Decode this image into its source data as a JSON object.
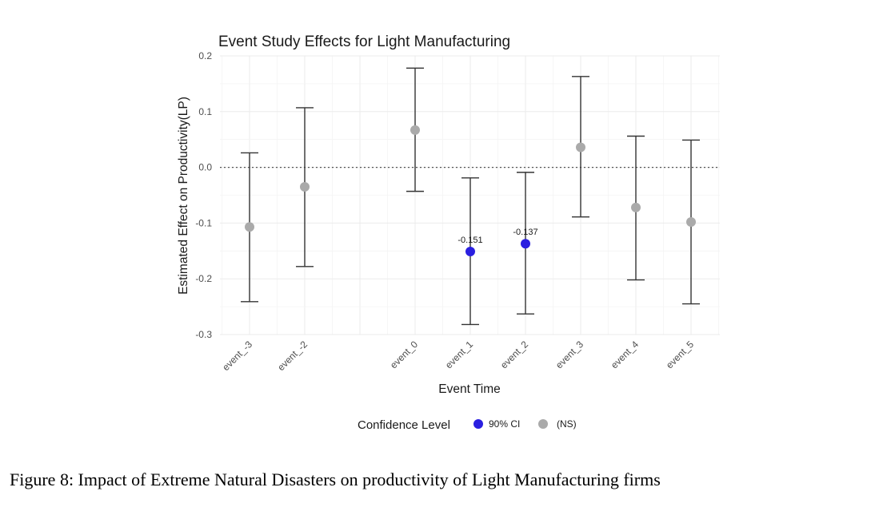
{
  "chart_data": {
    "type": "scatter",
    "title": "Event Study Effects for Light Manufacturing",
    "xlabel": "Event Time",
    "ylabel": "Estimated Effect on Productivity(LP)",
    "categories": [
      "event_-3",
      "event_-2",
      "event_0",
      "event_1",
      "event_2",
      "event_3",
      "event_4",
      "event_5"
    ],
    "ylim": [
      -0.3,
      0.2
    ],
    "yticks": [
      "-0.3",
      "-0.2",
      "-0.1",
      "0.0",
      "0.1",
      "0.2"
    ],
    "points": [
      {
        "category": "event_-3",
        "estimate": -0.107,
        "ci_low": -0.241,
        "ci_high": 0.026,
        "group": "(NS)",
        "label": ""
      },
      {
        "category": "event_-2",
        "estimate": -0.035,
        "ci_low": -0.178,
        "ci_high": 0.107,
        "group": "(NS)",
        "label": ""
      },
      {
        "category": "event_0",
        "estimate": 0.067,
        "ci_low": -0.043,
        "ci_high": 0.178,
        "group": "(NS)",
        "label": ""
      },
      {
        "category": "event_1",
        "estimate": -0.151,
        "ci_low": -0.282,
        "ci_high": -0.019,
        "group": "90% CI",
        "label": "-0.151"
      },
      {
        "category": "event_2",
        "estimate": -0.137,
        "ci_low": -0.263,
        "ci_high": -0.009,
        "group": "90% CI",
        "label": "-0.137"
      },
      {
        "category": "event_3",
        "estimate": 0.036,
        "ci_low": -0.089,
        "ci_high": 0.163,
        "group": "(NS)",
        "label": ""
      },
      {
        "category": "event_4",
        "estimate": -0.072,
        "ci_low": -0.202,
        "ci_high": 0.056,
        "group": "(NS)",
        "label": ""
      },
      {
        "category": "event_5",
        "estimate": -0.098,
        "ci_low": -0.245,
        "ci_high": 0.049,
        "group": "(NS)",
        "label": ""
      }
    ],
    "reference_line": 0.0,
    "grid": true,
    "legend": {
      "title": "Confidence Level",
      "placement": "bottom",
      "entries": [
        {
          "label": "90% CI",
          "color": "#2a1fe0"
        },
        {
          "label": "(NS)",
          "color": "#aaaaaa"
        }
      ]
    },
    "colors": {
      "significant": "#2a1fe0",
      "not_significant": "#aaaaaa",
      "errorbar": "#333333"
    }
  },
  "caption": "Figure 8: Impact of Extreme Natural Disasters on productivity of Light Manufacturing firms"
}
